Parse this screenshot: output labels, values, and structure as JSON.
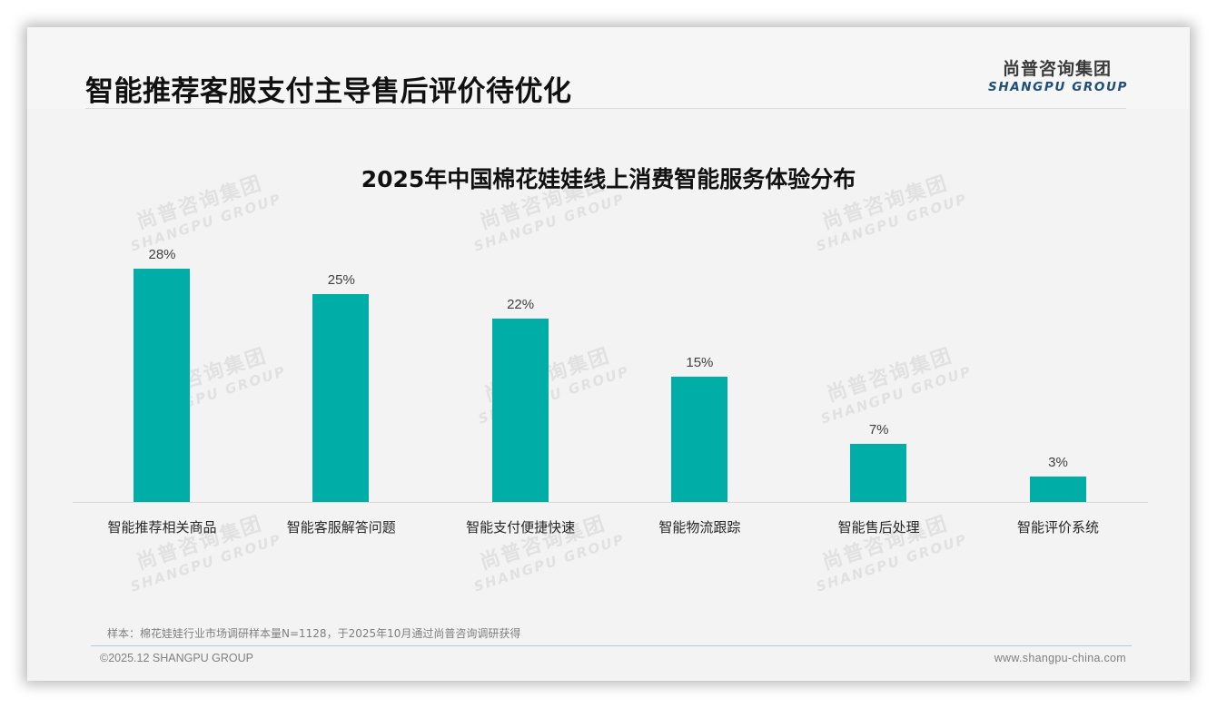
{
  "header": {
    "title": "智能推荐客服支付主导售后评价待优化",
    "logo_cn": "尚普咨询集团",
    "logo_en": "SHANGPU GROUP"
  },
  "watermark": {
    "cn": "尚普咨询集团",
    "en": "SHANGPU GROUP"
  },
  "chart_data": {
    "type": "bar",
    "title": "2025年中国棉花娃娃线上消费智能服务体验分布",
    "categories": [
      "智能推荐相关商品",
      "智能客服解答问题",
      "智能支付便捷快速",
      "智能物流跟踪",
      "智能售后处理",
      "智能评价系统"
    ],
    "values": [
      28,
      25,
      22,
      15,
      7,
      3
    ],
    "value_labels": [
      "28%",
      "25%",
      "22%",
      "15%",
      "7%",
      "3%"
    ],
    "xlabel": "",
    "ylabel": "",
    "ylim": [
      0,
      30
    ],
    "unit": "%",
    "grid": false,
    "legend": "none",
    "bar_color": "#00ada7"
  },
  "footer": {
    "source_note": "样本：棉花娃娃行业市场调研样本量N=1128，于2025年10月通过尚普咨询调研获得",
    "copyright": "©2025.12 SHANGPU GROUP",
    "website": "www.shangpu-china.com"
  }
}
